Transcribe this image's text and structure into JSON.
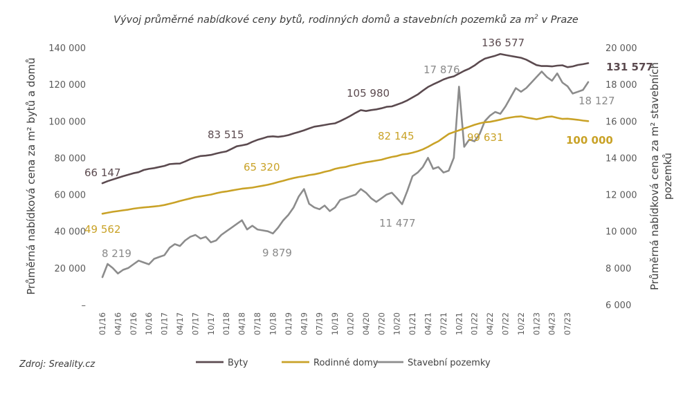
{
  "title_main": "Vývoj průměrné nabídkové ceny bytů, rodinných domů a stavebních pozemků za m",
  "title_sup": "2",
  "title_tail": " v Praze",
  "source": "Zdroj: Sreality.cz",
  "chart_data": {
    "type": "line",
    "y_left_label": "Průměrná nabídková cena za m² bytů a domů",
    "y_right_label_line1": "Průměrná nabídková cena za m² stavebních",
    "y_right_label_line2": "pozemků",
    "y_left_ticks": [
      "–",
      "20 000",
      "40 000",
      "60 000",
      "80 000",
      "100 000",
      "120 000",
      "140 000"
    ],
    "y_left_tick_values": [
      0,
      20000,
      40000,
      60000,
      80000,
      100000,
      120000,
      140000
    ],
    "y_right_ticks": [
      "6 000",
      "8 000",
      "10 000",
      "12 000",
      "14 000",
      "16 000",
      "18 000",
      "20 000"
    ],
    "y_right_tick_values": [
      6000,
      8000,
      10000,
      12000,
      14000,
      16000,
      18000,
      20000
    ],
    "ylim_left": [
      0,
      140000
    ],
    "ylim_right": [
      6000,
      20000
    ],
    "x_tick_labels": [
      "01/16",
      "04/16",
      "07/16",
      "10/16",
      "01/17",
      "04/17",
      "07/17",
      "10/17",
      "01/18",
      "04/18",
      "07/18",
      "10/18",
      "01/19",
      "04/19",
      "07/19",
      "10/19",
      "01/20",
      "04/20",
      "07/20",
      "10/20",
      "01/21",
      "04/21",
      "07/21",
      "10/21",
      "01/22",
      "04/22",
      "07/22",
      "10/22",
      "01/23",
      "04/23",
      "07/23"
    ],
    "x_start": "01/16",
    "x_end": "10/23",
    "series": [
      {
        "name": "Byty",
        "axis": "left",
        "color": "#5b4a4f",
        "values": [
          66147,
          67300,
          68200,
          69100,
          70000,
          70800,
          71600,
          72200,
          73400,
          74000,
          74400,
          75000,
          75600,
          76600,
          76800,
          76900,
          78000,
          79300,
          80200,
          81000,
          81200,
          81600,
          82300,
          83000,
          83515,
          84900,
          86300,
          86800,
          87400,
          88700,
          89800,
          90600,
          91500,
          91700,
          91400,
          91800,
          92400,
          93300,
          94100,
          95000,
          96000,
          97000,
          97400,
          97900,
          98400,
          98800,
          100000,
          101400,
          102900,
          104500,
          105980,
          105500,
          106000,
          106400,
          107000,
          107800,
          108000,
          109000,
          110000,
          111300,
          112900,
          114500,
          116600,
          118600,
          120000,
          121300,
          122700,
          123700,
          124400,
          125900,
          127400,
          128600,
          130300,
          132400,
          134000,
          134800,
          135600,
          136577,
          136000,
          135500,
          135000,
          134500,
          133500,
          132000,
          130500,
          130000,
          130000,
          129800,
          130200,
          130400,
          129400,
          129800,
          130600,
          131000,
          131577
        ]
      },
      {
        "name": "Rodinné domy",
        "axis": "left",
        "color": "#c9a227",
        "values": [
          49562,
          50100,
          50600,
          51000,
          51400,
          51800,
          52300,
          52700,
          53000,
          53200,
          53500,
          53800,
          54300,
          55000,
          55700,
          56500,
          57200,
          57900,
          58600,
          59000,
          59500,
          60000,
          60700,
          61300,
          61700,
          62200,
          62700,
          63200,
          63500,
          63800,
          64300,
          64800,
          65320,
          66000,
          66800,
          67500,
          68300,
          69000,
          69600,
          70000,
          70600,
          71000,
          71600,
          72400,
          73000,
          74000,
          74600,
          75000,
          75800,
          76400,
          77000,
          77600,
          78000,
          78500,
          79000,
          79800,
          80500,
          81000,
          81800,
          82145,
          82800,
          83600,
          84600,
          86000,
          87600,
          89000,
          91000,
          93000,
          94000,
          95000,
          96000,
          97000,
          98000,
          98800,
          99400,
          99631,
          100200,
          100800,
          101500,
          102000,
          102400,
          102600,
          102000,
          101500,
          101000,
          101600,
          102300,
          102500,
          101800,
          101200,
          101300,
          101000,
          100700,
          100300,
          100000
        ]
      },
      {
        "name": "Stavební pozemky",
        "axis": "right",
        "color": "#8c8c8c",
        "values": [
          7500,
          8219,
          8000,
          7700,
          7900,
          8000,
          8200,
          8400,
          8300,
          8200,
          8500,
          8600,
          8700,
          9100,
          9300,
          9200,
          9500,
          9700,
          9800,
          9600,
          9700,
          9400,
          9500,
          9800,
          10000,
          10200,
          10400,
          10600,
          10100,
          10300,
          10100,
          10050,
          10000,
          9879,
          10200,
          10600,
          10900,
          11300,
          11900,
          12300,
          11500,
          11300,
          11200,
          11400,
          11100,
          11300,
          11700,
          11800,
          11900,
          12000,
          12300,
          12100,
          11800,
          11600,
          11800,
          12000,
          12100,
          11800,
          11477,
          12200,
          13000,
          13200,
          13500,
          14000,
          13400,
          13500,
          13200,
          13300,
          14000,
          17876,
          14600,
          15000,
          14900,
          15300,
          16000,
          16300,
          16500,
          16400,
          16800,
          17300,
          17800,
          17600,
          17800,
          18100,
          18400,
          18700,
          18400,
          18200,
          18600,
          18100,
          17900,
          17500,
          17600,
          17700,
          18127
        ]
      }
    ],
    "annotations": [
      {
        "series": "Byty",
        "text": "66 147"
      },
      {
        "series": "Byty",
        "text": "83 515"
      },
      {
        "series": "Byty",
        "text": "105 980"
      },
      {
        "series": "Byty",
        "text": "136 577"
      },
      {
        "series": "Byty",
        "text": "131 577"
      },
      {
        "series": "Rodinné domy",
        "text": "49 562"
      },
      {
        "series": "Rodinné domy",
        "text": "65 320"
      },
      {
        "series": "Rodinné domy",
        "text": "82 145"
      },
      {
        "series": "Rodinné domy",
        "text": "99 631"
      },
      {
        "series": "Rodinné domy",
        "text": "100 000"
      },
      {
        "series": "Stavební pozemky",
        "text": "8 219"
      },
      {
        "series": "Stavební pozemky",
        "text": "9 879"
      },
      {
        "series": "Stavební pozemky",
        "text": "11 477"
      },
      {
        "series": "Stavební pozemky",
        "text": "17 876"
      },
      {
        "series": "Stavební pozemky",
        "text": "18 127"
      }
    ],
    "legend_placement": "bottom",
    "grid": false
  }
}
